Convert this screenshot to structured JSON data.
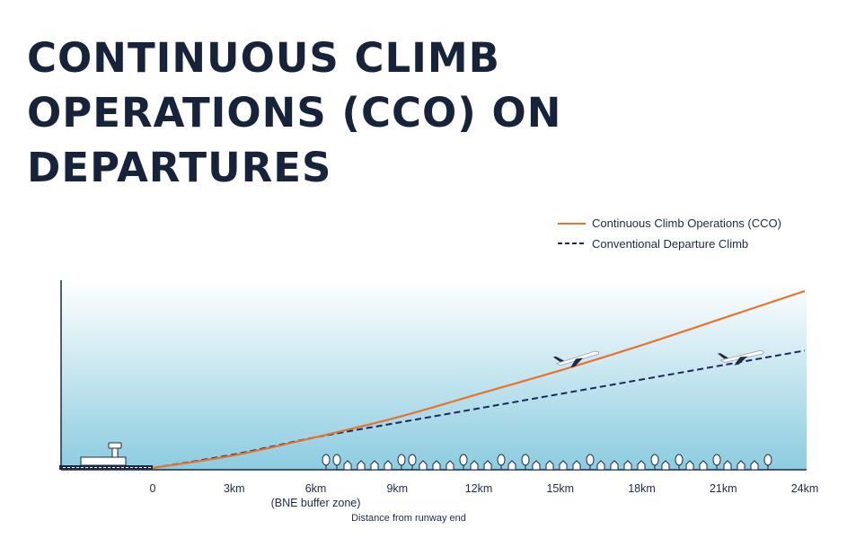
{
  "title_lines": [
    "CONTINUOUS CLIMB",
    "OPERATIONS (CCO) ON",
    "DEPARTURES"
  ],
  "chart_data": {
    "type": "line",
    "title": "CONTINUOUS CLIMB OPERATIONS (CCO) ON DEPARTURES",
    "xlabel": "Distance from runway end",
    "ylabel": "",
    "x_ticks": [
      0,
      3,
      6,
      9,
      12,
      15,
      18,
      21,
      24
    ],
    "x_tick_labels": [
      "0",
      "3km",
      "6km",
      "9km",
      "12km",
      "15km",
      "18km",
      "21km",
      "24km"
    ],
    "xlim": [
      0,
      24
    ],
    "ylim": [
      0,
      100
    ],
    "annotations": [
      {
        "x": 6,
        "text": "(BNE buffer zone)"
      }
    ],
    "legend_position": "top-right",
    "series": [
      {
        "name": "Continuous Climb Operations (CCO)",
        "style": "solid",
        "color": "#e8732c",
        "x": [
          0,
          3,
          6,
          9,
          12,
          15,
          18,
          21,
          24
        ],
        "y": [
          0,
          7,
          17,
          28,
          41,
          54,
          68,
          83,
          98
        ]
      },
      {
        "name": "Conventional Departure Climb",
        "style": "dashed",
        "color": "#1a2a5a",
        "x": [
          0,
          3,
          6,
          9,
          12,
          15,
          18,
          21,
          24
        ],
        "y": [
          0,
          7.5,
          17,
          25,
          33,
          41,
          49,
          57,
          65
        ]
      }
    ]
  },
  "colors": {
    "title": "#16233b",
    "cco": "#e8732c",
    "conventional": "#1a2a5a",
    "sky_top": "#ffffff",
    "sky_bottom": "#8ccce0"
  }
}
